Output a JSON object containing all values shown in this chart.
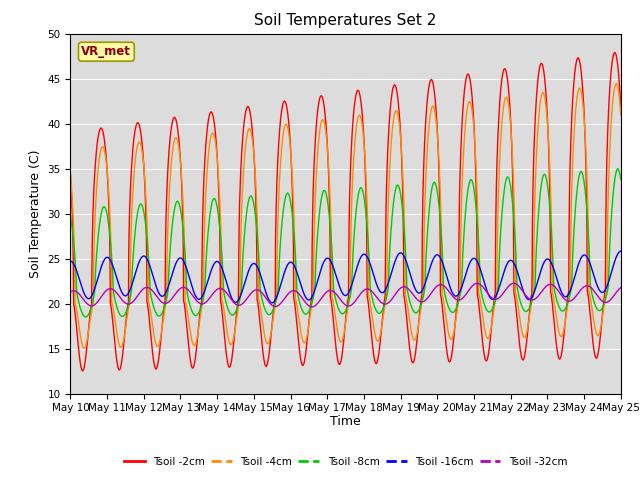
{
  "title": "Soil Temperatures Set 2",
  "xlabel": "Time",
  "ylabel": "Soil Temperature (C)",
  "ylim": [
    10,
    50
  ],
  "x_tick_labels": [
    "May 10",
    "May 11",
    "May 12",
    "May 13",
    "May 14",
    "May 15",
    "May 16",
    "May 17",
    "May 18",
    "May 19",
    "May 20",
    "May 21",
    "May 22",
    "May 23",
    "May 24",
    "May 25"
  ],
  "annotation_text": "VR_met",
  "colors": {
    "2cm": "#FF0000",
    "4cm": "#FF8C00",
    "8cm": "#00CC00",
    "16cm": "#0000FF",
    "32cm": "#BB00BB"
  },
  "legend_labels": [
    "Tsoil -2cm",
    "Tsoil -4cm",
    "Tsoil -8cm",
    "Tsoil -16cm",
    "Tsoil -32cm"
  ],
  "bg_color": "#DCDCDC",
  "title_fontsize": 11,
  "label_fontsize": 9,
  "tick_fontsize": 7.5
}
